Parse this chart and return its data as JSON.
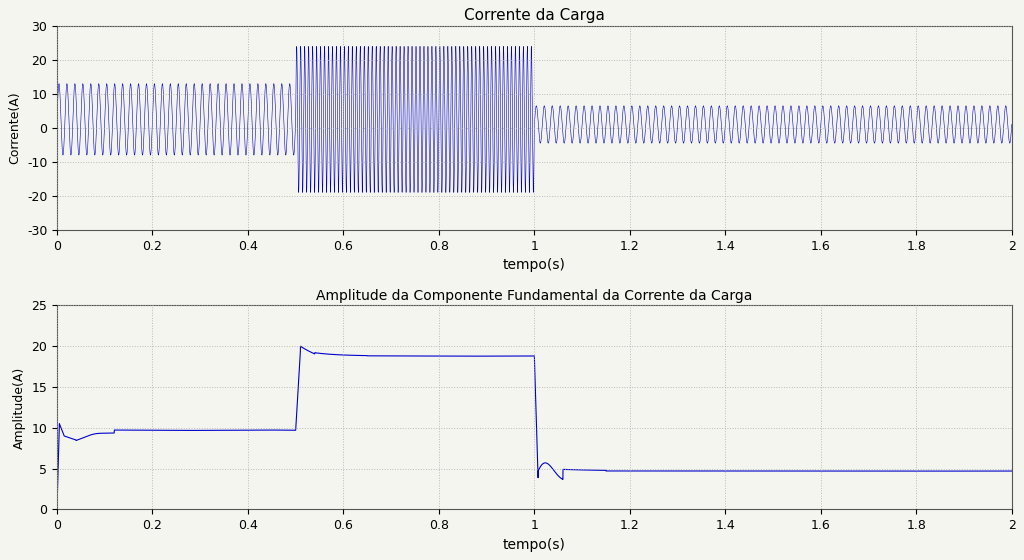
{
  "title1": "Corrente da Carga",
  "title2": "Amplitude da Componente Fundamental da Corrente da Carga",
  "xlabel": "tempo(s)",
  "ylabel1": "Corrente(A)",
  "ylabel2": "Amplitude(A)",
  "xlim": [
    0,
    2
  ],
  "ylim1": [
    -30,
    30
  ],
  "ylim2": [
    0,
    25
  ],
  "line_color": "#0000CC",
  "bg_color": "#f5f5f0",
  "grid_color": "#aaaaaa",
  "freq_segment1": 60,
  "freq_segment2": 120,
  "freq_segment3": 60,
  "amp_segment1": 10.5,
  "amp_segment2": 21.5,
  "amp_segment3": 5.5,
  "dc_segment1": 2.5,
  "dc_segment2": 2.5,
  "dc_segment3": 1.0,
  "t1": 0.5,
  "t2": 1.0,
  "dt": 0.0002
}
